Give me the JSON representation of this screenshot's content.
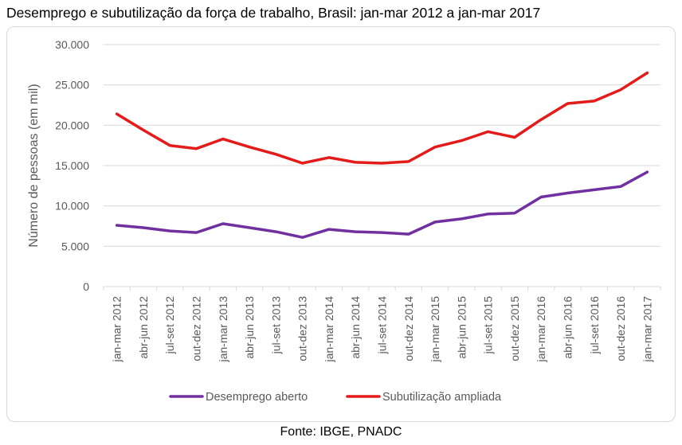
{
  "title": "Desemprego e subutilização da força de trabalho, Brasil: jan-mar 2012 a jan-mar 2017",
  "source": "Fonte: IBGE, PNADC",
  "colors": {
    "series1": "#7030a0",
    "series2": "#e31b1b",
    "grid": "#d9d9d9",
    "text": "#595959"
  },
  "chart_data": {
    "type": "line",
    "ylabel": "Número de pessoas (em mil)",
    "xlabel": "",
    "ylim": [
      0,
      30000
    ],
    "yticks": [
      0,
      5000,
      10000,
      15000,
      20000,
      25000,
      30000
    ],
    "ytick_labels": [
      "0",
      "5.000",
      "10.000",
      "15.000",
      "20.000",
      "25.000",
      "30.000"
    ],
    "grid": "horizontal",
    "legend_position": "bottom",
    "categories": [
      "jan-mar 2012",
      "abr-jun 2012",
      "jul-set 2012",
      "out-dez 2012",
      "jan-mar 2013",
      "abr-jun 2013",
      "jul-set 2013",
      "out-dez 2013",
      "jan-mar 2014",
      "abr-jun 2014",
      "jul-set 2014",
      "out-dez 2014",
      "jan-mar 2015",
      "abr-jun 2015",
      "jul-set 2015",
      "out-dez 2015",
      "jan-mar 2016",
      "abr-jun 2016",
      "jul-set 2016",
      "out-dez 2016",
      "jan-mar 2017"
    ],
    "series": [
      {
        "name": "Desemprego aberto",
        "values": [
          7600,
          7300,
          6900,
          6700,
          7800,
          7300,
          6800,
          6100,
          7100,
          6800,
          6700,
          6500,
          8000,
          8400,
          9000,
          9100,
          11100,
          11600,
          12000,
          12400,
          14200
        ]
      },
      {
        "name": "Subutilização ampliada",
        "values": [
          21400,
          19400,
          17500,
          17100,
          18300,
          17300,
          16400,
          15300,
          16000,
          15400,
          15300,
          15500,
          17300,
          18100,
          19200,
          18500,
          20700,
          22700,
          23000,
          24400,
          26500
        ]
      }
    ]
  }
}
